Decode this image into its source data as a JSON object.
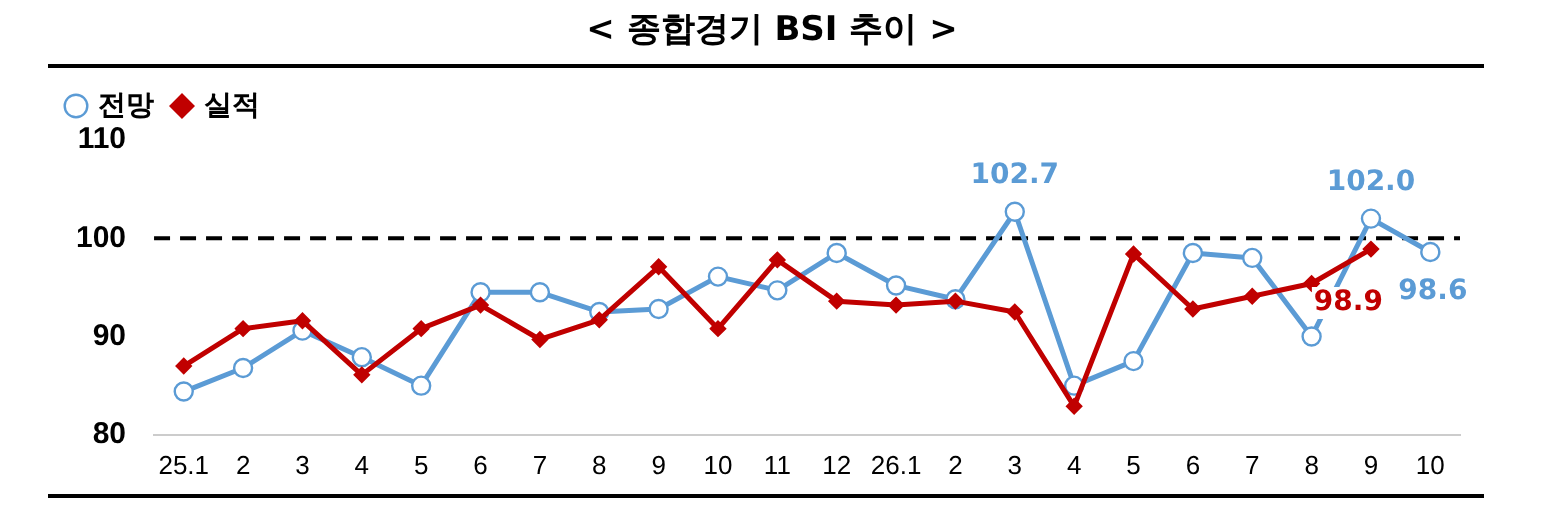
{
  "chart_data": {
    "type": "line",
    "title": "< 종합경기 BSI 추이 >",
    "categories": [
      "25.1",
      "2",
      "3",
      "4",
      "5",
      "6",
      "7",
      "8",
      "9",
      "10",
      "11",
      "12",
      "26.1",
      "2",
      "3",
      "4",
      "5",
      "6",
      "7",
      "8",
      "9",
      "10"
    ],
    "series": [
      {
        "name": "전망",
        "color": "#5b9bd5",
        "marker": "circle",
        "values": [
          84.4,
          86.8,
          90.6,
          87.9,
          85.0,
          94.5,
          94.5,
          92.5,
          92.8,
          96.1,
          94.7,
          98.5,
          95.2,
          93.8,
          102.7,
          85.0,
          87.5,
          98.5,
          98.0,
          90.0,
          102.0,
          98.6
        ],
        "value_labels": [
          null,
          null,
          null,
          null,
          null,
          null,
          null,
          null,
          null,
          null,
          null,
          null,
          null,
          null,
          "102.7",
          null,
          null,
          null,
          null,
          null,
          "102.0",
          "98.6"
        ]
      },
      {
        "name": "실적",
        "color": "#c00000",
        "marker": "diamond",
        "values": [
          87.0,
          90.8,
          91.6,
          86.1,
          90.8,
          93.2,
          89.7,
          91.7,
          97.1,
          90.8,
          97.8,
          93.6,
          93.2,
          93.6,
          92.5,
          82.9,
          98.4,
          92.8,
          94.1,
          95.4,
          98.9,
          null
        ],
        "value_labels": [
          null,
          null,
          null,
          null,
          null,
          null,
          null,
          null,
          null,
          null,
          null,
          null,
          null,
          null,
          null,
          null,
          null,
          null,
          null,
          null,
          "98.9",
          null
        ]
      }
    ],
    "ylim": [
      80,
      110
    ],
    "yticks": [
      80,
      90,
      100,
      110
    ],
    "grid": false,
    "legend": "top left",
    "ref_lines": [
      {
        "axis": "y",
        "value": 100,
        "line_style": "dashed",
        "color": "#000000"
      }
    ]
  }
}
